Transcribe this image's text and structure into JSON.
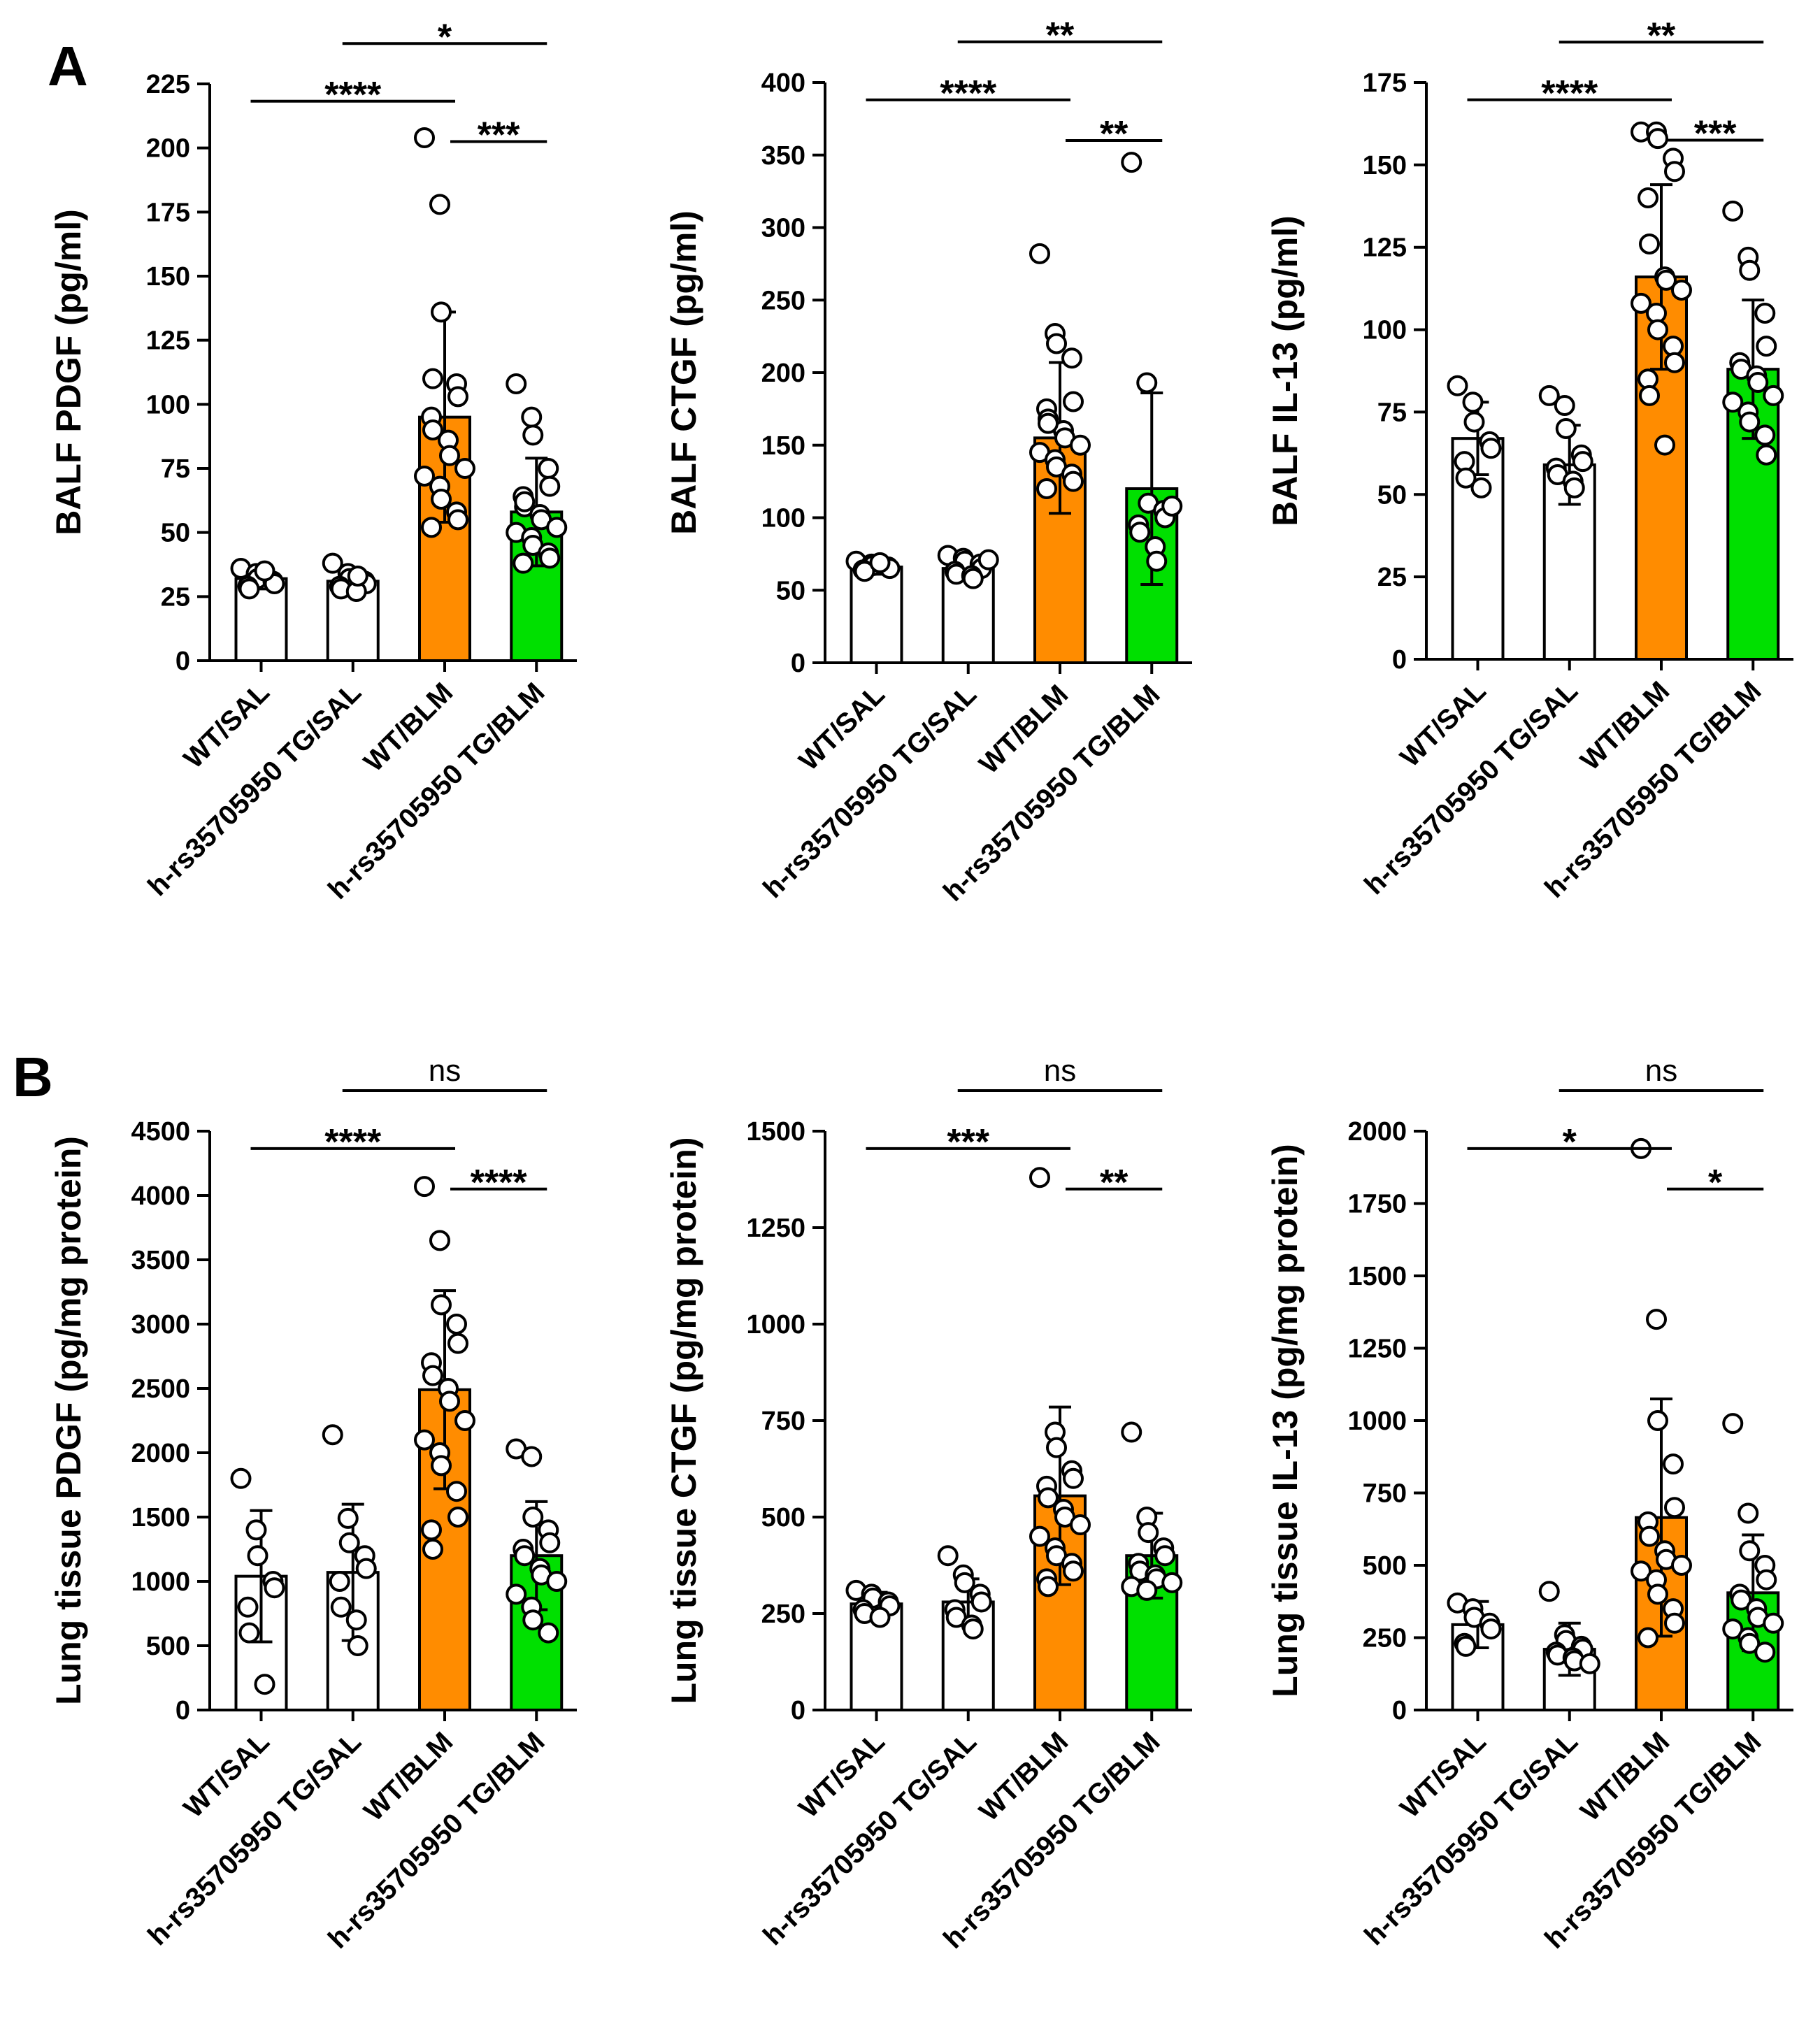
{
  "figure": {
    "panels": [
      {
        "letter": "A"
      },
      {
        "letter": "B"
      }
    ]
  },
  "colors": {
    "WT/SAL": "#ffffff",
    "h-rs35705950 TG/SAL": "#ffffff",
    "WT/BLM": "#ff8c00",
    "h-rs35705950 TG/BLM": "#00e000",
    "outline": "#000000"
  },
  "chart_data": [
    {
      "type": "bar",
      "panel": "A",
      "ylabel": "BALF PDGF (pg/ml)",
      "categories": [
        "WT/SAL",
        "h-rs35705950 TG/SAL",
        "WT/BLM",
        "h-rs35705950 TG/BLM"
      ],
      "values": [
        32,
        31,
        95,
        58
      ],
      "error": [
        4,
        4,
        41,
        21
      ],
      "points": [
        [
          36,
          34,
          32,
          31,
          30,
          29,
          28,
          35
        ],
        [
          38,
          34,
          32,
          31,
          30,
          29,
          28,
          27,
          33
        ],
        [
          204,
          178,
          136,
          108,
          103,
          95,
          90,
          86,
          80,
          75,
          72,
          68,
          63,
          58,
          55,
          52,
          110
        ],
        [
          108,
          95,
          88,
          75,
          68,
          64,
          60,
          57,
          55,
          52,
          50,
          48,
          45,
          42,
          40,
          38,
          62
        ]
      ],
      "ylim": [
        0,
        225
      ],
      "yticks": [
        0,
        25,
        50,
        75,
        100,
        125,
        150,
        175,
        200,
        225
      ],
      "comparisons": [
        {
          "from": 2,
          "to": 3,
          "label": "***"
        },
        {
          "from": 0,
          "to": 2,
          "label": "****"
        },
        {
          "from": 1,
          "to": 3,
          "label": "*"
        }
      ]
    },
    {
      "type": "bar",
      "panel": "A",
      "ylabel": "BALF CTGF (pg/ml)",
      "categories": [
        "WT/SAL",
        "h-rs35705950 TG/SAL",
        "WT/BLM",
        "h-rs35705950 TG/BLM"
      ],
      "values": [
        66,
        65,
        155,
        120
      ],
      "error": [
        5,
        6,
        52,
        66
      ],
      "points": [
        [
          70,
          68,
          67,
          66,
          65,
          64,
          63,
          69
        ],
        [
          74,
          72,
          70,
          68,
          65,
          63,
          61,
          60,
          58,
          71
        ],
        [
          282,
          227,
          220,
          210,
          180,
          175,
          168,
          160,
          155,
          150,
          145,
          140,
          135,
          130,
          125,
          120,
          165
        ],
        [
          345,
          193,
          110,
          105,
          100,
          95,
          90,
          80,
          70,
          108
        ]
      ],
      "ylim": [
        0,
        400
      ],
      "yticks": [
        0,
        50,
        100,
        150,
        200,
        250,
        300,
        350,
        400
      ],
      "comparisons": [
        {
          "from": 2,
          "to": 3,
          "label": "**"
        },
        {
          "from": 0,
          "to": 2,
          "label": "****"
        },
        {
          "from": 1,
          "to": 3,
          "label": "**"
        }
      ]
    },
    {
      "type": "bar",
      "panel": "A",
      "ylabel": "BALF IL-13 (pg/ml)",
      "categories": [
        "WT/SAL",
        "h-rs35705950 TG/SAL",
        "WT/BLM",
        "h-rs35705950 TG/BLM"
      ],
      "values": [
        67,
        59,
        116,
        88
      ],
      "error": [
        11,
        12,
        28,
        21
      ],
      "points": [
        [
          83,
          78,
          72,
          66,
          64,
          60,
          55,
          52
        ],
        [
          80,
          77,
          70,
          62,
          60,
          58,
          56,
          54,
          52
        ],
        [
          160,
          160,
          158,
          152,
          148,
          140,
          126,
          116,
          115,
          112,
          108,
          105,
          100,
          95,
          90,
          85,
          80,
          65
        ],
        [
          136,
          122,
          118,
          105,
          95,
          90,
          88,
          86,
          84,
          80,
          78,
          75,
          72,
          68,
          62
        ]
      ],
      "ylim": [
        0,
        175
      ],
      "yticks": [
        0,
        25,
        50,
        75,
        100,
        125,
        150,
        175
      ],
      "comparisons": [
        {
          "from": 2,
          "to": 3,
          "label": "***"
        },
        {
          "from": 0,
          "to": 2,
          "label": "****"
        },
        {
          "from": 1,
          "to": 3,
          "label": "**"
        }
      ]
    },
    {
      "type": "bar",
      "panel": "B",
      "ylabel": "Lung tissue PDGF (pg/mg protein)",
      "categories": [
        "WT/SAL",
        "h-rs35705950 TG/SAL",
        "WT/BLM",
        "h-rs35705950 TG/BLM"
      ],
      "values": [
        1040,
        1070,
        2490,
        1200
      ],
      "error": [
        510,
        530,
        770,
        420
      ],
      "points": [
        [
          1800,
          1400,
          1200,
          1000,
          950,
          800,
          600,
          200
        ],
        [
          2140,
          1490,
          1300,
          1200,
          1100,
          1000,
          800,
          700,
          500
        ],
        [
          4070,
          3650,
          3150,
          3000,
          2850,
          2700,
          2600,
          2500,
          2400,
          2250,
          2100,
          2000,
          1900,
          1700,
          1500,
          1400,
          1250
        ],
        [
          2030,
          1970,
          1500,
          1400,
          1300,
          1250,
          1200,
          1100,
          1050,
          1000,
          900,
          800,
          700,
          600
        ]
      ],
      "ylim": [
        0,
        4500
      ],
      "yticks": [
        0,
        500,
        1000,
        1500,
        2000,
        2500,
        3000,
        3500,
        4000,
        4500
      ],
      "comparisons": [
        {
          "from": 2,
          "to": 3,
          "label": "****"
        },
        {
          "from": 0,
          "to": 2,
          "label": "****"
        },
        {
          "from": 1,
          "to": 3,
          "label": "ns"
        }
      ]
    },
    {
      "type": "bar",
      "panel": "B",
      "ylabel": "Lung tissue CTGF (pg/mg protein)",
      "categories": [
        "WT/SAL",
        "h-rs35705950 TG/SAL",
        "WT/BLM",
        "h-rs35705950 TG/BLM"
      ],
      "values": [
        275,
        280,
        555,
        400
      ],
      "error": [
        30,
        60,
        230,
        110
      ],
      "points": [
        [
          310,
          300,
          290,
          280,
          270,
          260,
          250,
          240
        ],
        [
          400,
          350,
          330,
          300,
          280,
          260,
          240,
          220,
          210
        ],
        [
          1380,
          720,
          680,
          620,
          600,
          580,
          550,
          520,
          500,
          480,
          450,
          420,
          400,
          380,
          360,
          340,
          320
        ],
        [
          720,
          500,
          460,
          420,
          400,
          380,
          360,
          350,
          340,
          330,
          320,
          310
        ]
      ],
      "ylim": [
        0,
        1500
      ],
      "yticks": [
        0,
        250,
        500,
        750,
        1000,
        1250,
        1500
      ],
      "comparisons": [
        {
          "from": 2,
          "to": 3,
          "label": "**"
        },
        {
          "from": 0,
          "to": 2,
          "label": "***"
        },
        {
          "from": 1,
          "to": 3,
          "label": "ns"
        }
      ]
    },
    {
      "type": "bar",
      "panel": "B",
      "ylabel": "Lung tissue IL-13 (pg/mg protein)",
      "categories": [
        "WT/SAL",
        "h-rs35705950 TG/SAL",
        "WT/BLM",
        "h-rs35705950 TG/BLM"
      ],
      "values": [
        295,
        210,
        665,
        405
      ],
      "error": [
        80,
        90,
        410,
        200
      ],
      "points": [
        [
          370,
          350,
          320,
          300,
          280,
          230,
          220
        ],
        [
          410,
          260,
          240,
          220,
          210,
          200,
          190,
          180,
          170,
          160
        ],
        [
          1940,
          1350,
          1000,
          850,
          700,
          650,
          600,
          550,
          520,
          500,
          480,
          450,
          400,
          350,
          300,
          250
        ],
        [
          990,
          680,
          550,
          500,
          450,
          400,
          380,
          350,
          320,
          300,
          280,
          250,
          230,
          200
        ]
      ],
      "ylim": [
        0,
        2000
      ],
      "yticks": [
        0,
        250,
        500,
        750,
        1000,
        1250,
        1500,
        1750,
        2000
      ],
      "comparisons": [
        {
          "from": 2,
          "to": 3,
          "label": "*"
        },
        {
          "from": 0,
          "to": 2,
          "label": "*"
        },
        {
          "from": 1,
          "to": 3,
          "label": "ns"
        }
      ]
    }
  ]
}
